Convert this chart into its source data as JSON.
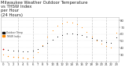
{
  "title": "Milwaukee Weather Outdoor Temperature\nvs THSW Index\nper Hour\n(24 Hours)",
  "background_color": "#ffffff",
  "plot_bg_color": "#ffffff",
  "grid_color": "#bbbbbb",
  "hours": [
    0,
    1,
    2,
    3,
    4,
    5,
    6,
    7,
    8,
    9,
    10,
    11,
    12,
    13,
    14,
    15,
    16,
    17,
    18,
    19,
    20,
    21,
    22,
    23
  ],
  "temp_values": [
    38,
    37,
    36,
    36,
    35,
    35,
    36,
    38,
    42,
    47,
    52,
    56,
    59,
    61,
    61,
    60,
    58,
    56,
    54,
    52,
    50,
    48,
    47,
    55
  ],
  "thsw_values": [
    30,
    28,
    27,
    26,
    25,
    24,
    27,
    33,
    44,
    56,
    65,
    72,
    76,
    78,
    77,
    74,
    70,
    63,
    56,
    50,
    46,
    42,
    40,
    62
  ],
  "temp_color": "#111111",
  "thsw_color": "#ff8800",
  "highlight_color": "#cc0000",
  "ylim": [
    20,
    85
  ],
  "xlim": [
    -0.5,
    23.5
  ],
  "yticks": [
    30,
    40,
    50,
    60,
    70,
    80
  ],
  "xticks": [
    0,
    1,
    2,
    3,
    4,
    5,
    6,
    7,
    8,
    9,
    10,
    11,
    12,
    13,
    14,
    15,
    16,
    17,
    18,
    19,
    20,
    21,
    22,
    23
  ],
  "vgrid_positions": [
    3,
    6,
    9,
    12,
    15,
    18,
    21
  ],
  "title_color": "#222222",
  "tick_color": "#444444",
  "title_fontsize": 3.8,
  "tick_fontsize": 2.8,
  "legend_labels": [
    "Outdoor Temp",
    "THSW Index"
  ],
  "marker_size": 2.5,
  "special_hours_red": [
    0
  ],
  "special_hours_orange_low": [
    1,
    2,
    3,
    4,
    5
  ]
}
